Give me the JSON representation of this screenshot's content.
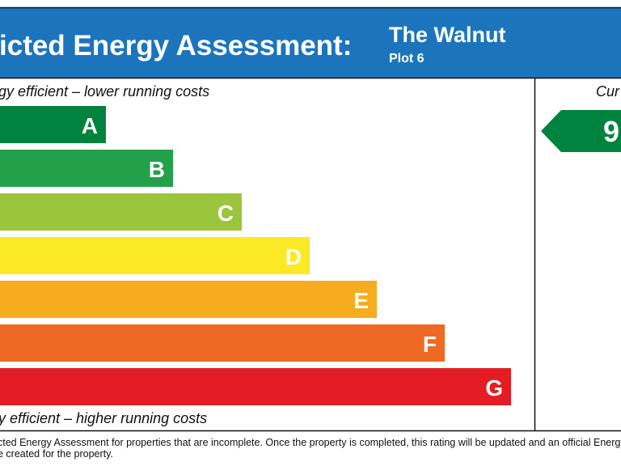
{
  "header": {
    "title": "icted Energy Assessment:",
    "property": "The Walnut",
    "plot": "Plot 6"
  },
  "scale": {
    "top_label": "gy efficient – lower running costs",
    "bottom_label": "y efficient – higher running costs",
    "bands": [
      "A",
      "B",
      "C",
      "D",
      "E",
      "F",
      "G"
    ]
  },
  "current": {
    "label": "Cur",
    "rating": "9"
  },
  "footer": {
    "lines": [
      "cted Energy Assessment for properties that are incomplete. Once the property is completed, this rating will be updated and an official Energy",
      "e created for the property."
    ]
  }
}
